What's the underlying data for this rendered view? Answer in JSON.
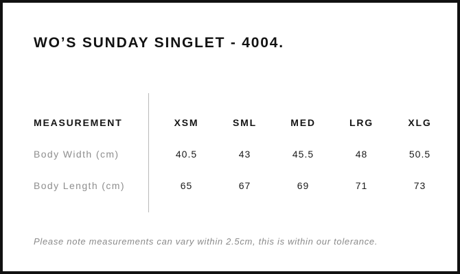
{
  "page": {
    "title": "WO’S SUNDAY SINGLET - 4004."
  },
  "size_chart": {
    "measurement_header": "MEASUREMENT",
    "size_columns": [
      "XSM",
      "SML",
      "MED",
      "LRG",
      "XLG"
    ],
    "rows": [
      {
        "label": "Body Width (cm)",
        "values": [
          "40.5",
          "43",
          "45.5",
          "48",
          "50.5"
        ]
      },
      {
        "label": "Body Length (cm)",
        "values": [
          "65",
          "67",
          "69",
          "71",
          "73"
        ]
      }
    ]
  },
  "footer": {
    "note": "Please note measurements can vary within 2.5cm, this is within our tolerance."
  }
}
